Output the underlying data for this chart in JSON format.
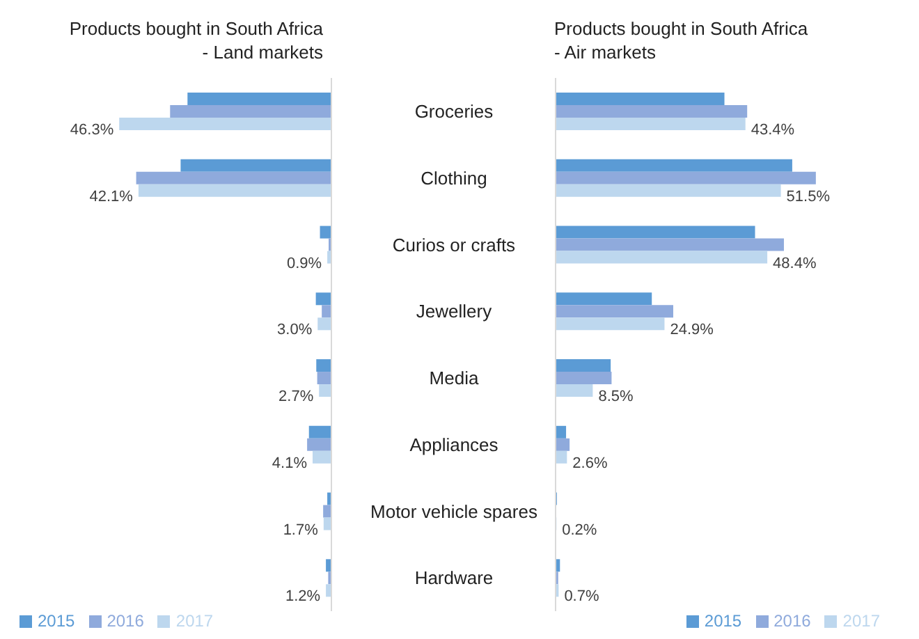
{
  "chart_data": [
    {
      "type": "bar",
      "orientation": "horizontal",
      "title": "Products bought in South Africa\n- Land markets",
      "categories": [
        "Groceries",
        "Clothing",
        "Curios or crafts",
        "Jewellery",
        "Media",
        "Appliances",
        "Motor vehicle spares",
        "Hardware"
      ],
      "tick_labels": "y",
      "legend": "bottom left",
      "series": [
        {
          "name": "2015",
          "color": "#5b9bd5",
          "values": [
            31.4,
            32.9,
            2.5,
            3.4,
            3.3,
            4.9,
            0.9,
            1.2
          ]
        },
        {
          "name": "2016",
          "color": "#8faadc",
          "values": [
            35.2,
            42.6,
            0.6,
            2.1,
            3.1,
            5.3,
            1.8,
            0.7
          ]
        },
        {
          "name": "2017",
          "color": "#bdd7ee",
          "values": [
            46.3,
            42.1,
            0.9,
            3.0,
            2.7,
            4.1,
            1.7,
            1.2
          ],
          "value_labels": [
            "46.3%",
            "42.1%",
            "0.9%",
            "3.0%",
            "2.7%",
            "4.1%",
            "1.7%",
            "1.2%"
          ]
        }
      ]
    },
    {
      "type": "bar",
      "orientation": "horizontal",
      "title": "Products bought in South Africa\n- Air markets",
      "categories": [
        null,
        null,
        null,
        null,
        null,
        null,
        null,
        null
      ],
      "tick_labels": false,
      "legend": "bottom right",
      "series": [
        {
          "name": "2015",
          "color": "#5b9bd5",
          "values": [
            38.6,
            54.1,
            45.6,
            22.0,
            12.6,
            2.4,
            0.3,
            1.0
          ]
        },
        {
          "name": "2016",
          "color": "#8faadc",
          "values": [
            43.8,
            59.5,
            52.2,
            26.9,
            12.8,
            3.2,
            0.1,
            0.6
          ]
        },
        {
          "name": "2017",
          "color": "#bdd7ee",
          "values": [
            43.4,
            51.5,
            48.4,
            24.9,
            8.5,
            2.6,
            0.2,
            0.7
          ],
          "value_labels": [
            "43.4%",
            "51.5%",
            "48.4%",
            "24.9%",
            "8.5%",
            "2.6%",
            "0.2%",
            "0.7%"
          ]
        }
      ]
    }
  ]
}
